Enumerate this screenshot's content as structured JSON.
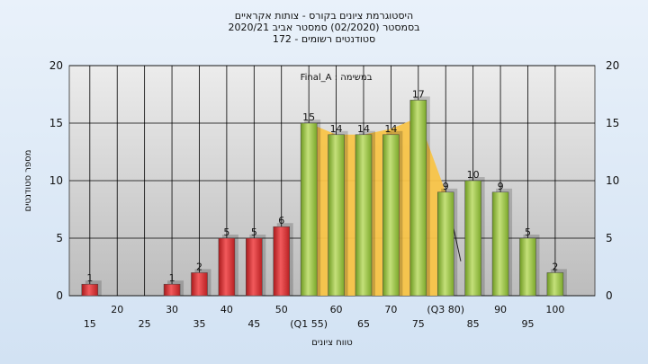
{
  "chart_data": {
    "type": "bar",
    "title_lines": [
      "היסטוגרמת ציונים בקורס - צותות אקראיים",
      "בסמסטר  (02/2020)  סמסטר אביב 2020/21",
      "סטודנטים רשומים - 172"
    ],
    "annotation": "Final_A : במשימה",
    "ylabel": "מספר סטודנטים",
    "xlabel": "טווח ציונים",
    "ylim": [
      0,
      20
    ],
    "yticks": [
      0,
      5,
      10,
      15,
      20
    ],
    "x_ticks_upper": [
      "20",
      "30",
      "40",
      "50",
      "60",
      "70",
      "(Q3 80)",
      "90",
      "100"
    ],
    "x_ticks_lower": [
      "15",
      "25",
      "35",
      "45",
      "(Q1 55)",
      "65",
      "75",
      "85",
      "95"
    ],
    "categories": [
      "15",
      "20",
      "25",
      "30",
      "35",
      "40",
      "45",
      "50",
      "55",
      "60",
      "65",
      "70",
      "75",
      "80",
      "85",
      "90",
      "95",
      "100"
    ],
    "values": [
      1,
      0,
      0,
      1,
      2,
      5,
      5,
      6,
      15,
      14,
      14,
      14,
      17,
      9,
      10,
      9,
      5,
      2
    ],
    "data_labels": [
      "1",
      "",
      "",
      "1",
      "2",
      "5",
      "5",
      "6",
      "15",
      "14",
      "14",
      "14",
      "17",
      "9",
      "10",
      "9",
      "5",
      "2"
    ],
    "bar_colors": [
      "red",
      "red",
      "red",
      "red",
      "red",
      "red",
      "red",
      "red",
      "green",
      "green",
      "green",
      "green",
      "green",
      "green",
      "green",
      "green",
      "green",
      "green"
    ],
    "band_values": [
      15,
      14,
      14,
      14.5,
      15.5,
      9
    ],
    "grid": true,
    "colors": {
      "red_bar": "#e0383a",
      "green_bar": "#9ec44a",
      "band_fill": "#f8c448",
      "plot_bg": "#c4c4c4",
      "plot_top": "#ececec"
    }
  }
}
